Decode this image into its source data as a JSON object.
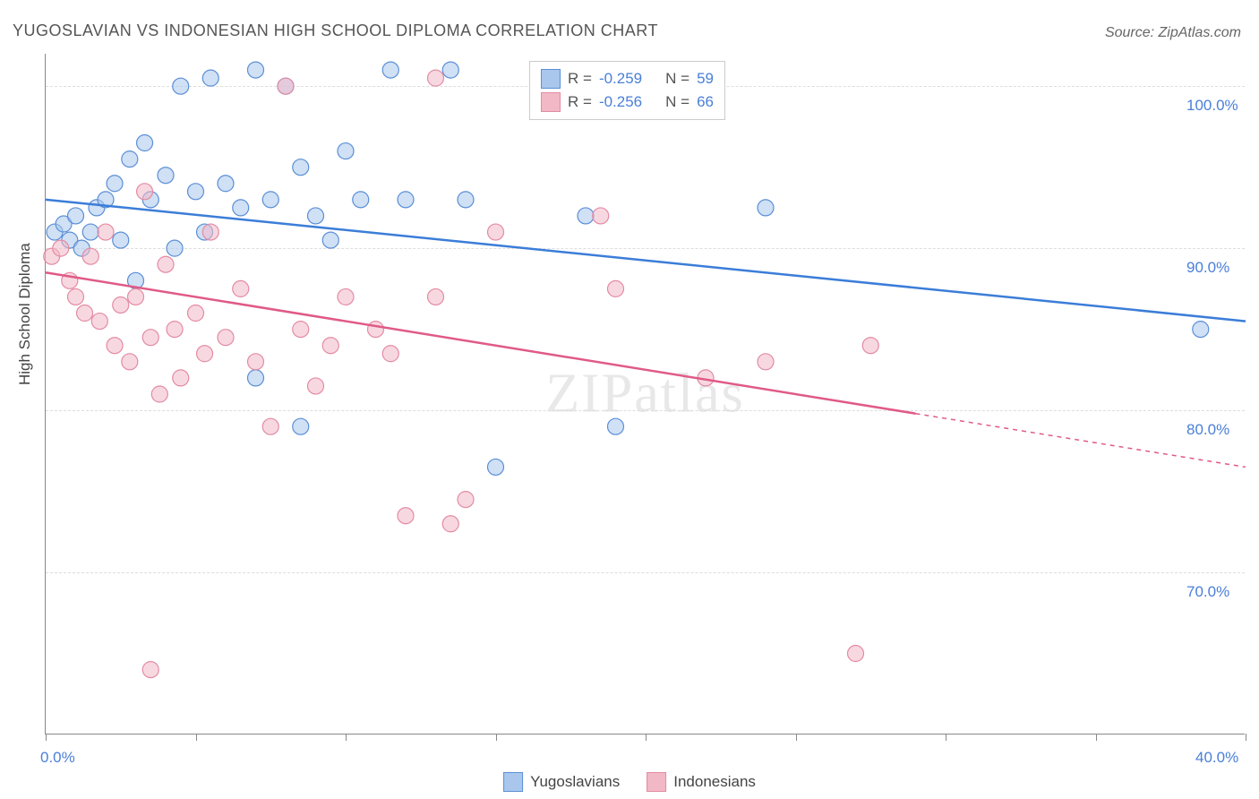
{
  "title": "YUGOSLAVIAN VS INDONESIAN HIGH SCHOOL DIPLOMA CORRELATION CHART",
  "source": "Source: ZipAtlas.com",
  "watermark": "ZIPatlas",
  "axis_y_title": "High School Diploma",
  "chart": {
    "type": "scatter",
    "xlim": [
      0,
      40
    ],
    "ylim": [
      60,
      102
    ],
    "x_ticks": [
      0,
      5,
      10,
      15,
      20,
      25,
      30,
      35,
      40
    ],
    "x_tick_labels": {
      "0": "0.0%",
      "40": "40.0%"
    },
    "y_gridlines": [
      70,
      80,
      90,
      100
    ],
    "y_tick_labels": {
      "70": "70.0%",
      "80": "80.0%",
      "90": "90.0%",
      "100": "100.0%"
    },
    "background_color": "#ffffff",
    "grid_color": "#dddddd",
    "marker_radius": 9,
    "marker_opacity": 0.55,
    "series": [
      {
        "name": "Yugoslavians",
        "color_fill": "#a9c7ec",
        "color_stroke": "#5a8fd6",
        "line_color": "#3b7dd8",
        "line_width": 2.5,
        "r_value": "-0.259",
        "n_value": "59",
        "trend": {
          "x1": 0,
          "y1": 93,
          "x2": 40,
          "y2": 85.5,
          "dash_from_x": null
        },
        "points": [
          [
            0.3,
            91
          ],
          [
            0.6,
            91.5
          ],
          [
            0.8,
            90.5
          ],
          [
            1.0,
            92
          ],
          [
            1.2,
            90
          ],
          [
            1.5,
            91
          ],
          [
            1.7,
            92.5
          ],
          [
            2.0,
            93
          ],
          [
            2.3,
            94
          ],
          [
            2.5,
            90.5
          ],
          [
            2.8,
            95.5
          ],
          [
            3.0,
            88
          ],
          [
            3.3,
            96.5
          ],
          [
            3.5,
            93
          ],
          [
            4.0,
            94.5
          ],
          [
            4.3,
            90
          ],
          [
            4.5,
            100
          ],
          [
            5.0,
            93.5
          ],
          [
            5.3,
            91
          ],
          [
            5.5,
            100.5
          ],
          [
            6.0,
            94
          ],
          [
            6.5,
            92.5
          ],
          [
            7.0,
            101
          ],
          [
            7.5,
            93
          ],
          [
            8.0,
            100
          ],
          [
            8.5,
            95
          ],
          [
            9.0,
            92
          ],
          [
            9.5,
            90.5
          ],
          [
            10.0,
            96
          ],
          [
            10.5,
            93
          ],
          [
            7.0,
            82
          ],
          [
            11.5,
            101
          ],
          [
            12.0,
            93
          ],
          [
            8.5,
            79
          ],
          [
            13.5,
            101
          ],
          [
            14.0,
            93
          ],
          [
            15.0,
            76.5
          ],
          [
            18.0,
            92
          ],
          [
            19.0,
            79
          ],
          [
            24.0,
            92.5
          ],
          [
            38.5,
            85
          ]
        ]
      },
      {
        "name": "Indonesians",
        "color_fill": "#f2b8c6",
        "color_stroke": "#e38ba3",
        "line_color": "#e05a87",
        "line_width": 2.5,
        "r_value": "-0.256",
        "n_value": "66",
        "trend": {
          "x1": 0,
          "y1": 88.5,
          "x2": 40,
          "y2": 76.5,
          "dash_from_x": 29
        },
        "points": [
          [
            0.2,
            89.5
          ],
          [
            0.5,
            90
          ],
          [
            0.8,
            88
          ],
          [
            1.0,
            87
          ],
          [
            1.3,
            86
          ],
          [
            1.5,
            89.5
          ],
          [
            1.8,
            85.5
          ],
          [
            2.0,
            91
          ],
          [
            2.3,
            84
          ],
          [
            2.5,
            86.5
          ],
          [
            2.8,
            83
          ],
          [
            3.0,
            87
          ],
          [
            3.3,
            93.5
          ],
          [
            3.5,
            84.5
          ],
          [
            3.8,
            81
          ],
          [
            4.0,
            89
          ],
          [
            4.3,
            85
          ],
          [
            4.5,
            82
          ],
          [
            5.0,
            86
          ],
          [
            5.3,
            83.5
          ],
          [
            5.5,
            91
          ],
          [
            6.0,
            84.5
          ],
          [
            6.5,
            87.5
          ],
          [
            7.0,
            83
          ],
          [
            7.5,
            79
          ],
          [
            3.5,
            64
          ],
          [
            8.0,
            100
          ],
          [
            8.5,
            85
          ],
          [
            9.0,
            81.5
          ],
          [
            9.5,
            84
          ],
          [
            10.0,
            87
          ],
          [
            11.0,
            85
          ],
          [
            11.5,
            83.5
          ],
          [
            12.0,
            73.5
          ],
          [
            13.0,
            100.5
          ],
          [
            13.5,
            73
          ],
          [
            14.0,
            74.5
          ],
          [
            15.0,
            91
          ],
          [
            13.0,
            87
          ],
          [
            18.5,
            92
          ],
          [
            19.0,
            87.5
          ],
          [
            22.0,
            82
          ],
          [
            24.0,
            83
          ],
          [
            27.5,
            84
          ],
          [
            27.0,
            65
          ]
        ]
      }
    ]
  },
  "legend_top": {
    "r_label": "R =",
    "n_label": "N ="
  },
  "colors": {
    "label_blue": "#4a7fd8",
    "text_gray": "#555555"
  },
  "fonts": {
    "title_size": 18,
    "label_size": 17,
    "watermark_size": 62
  }
}
